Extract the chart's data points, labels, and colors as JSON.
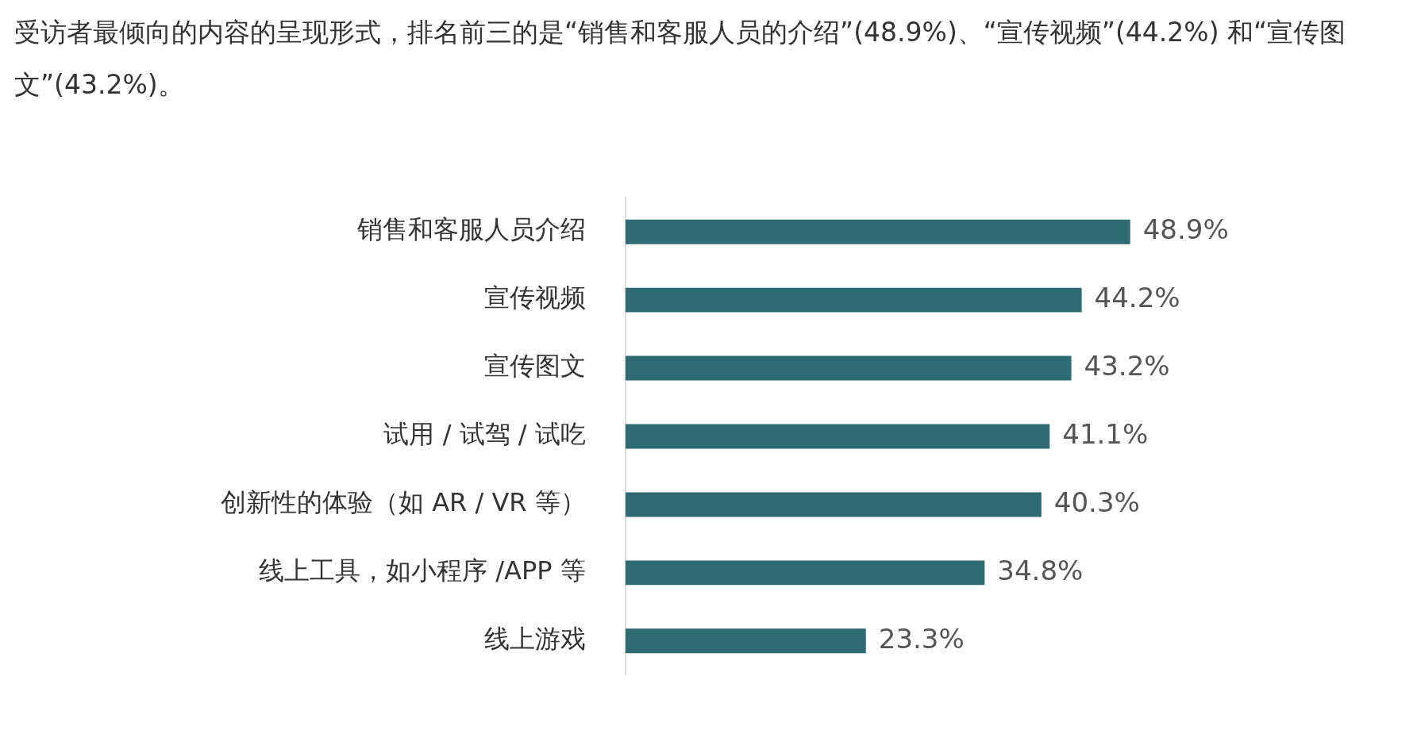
{
  "chart_data": {
    "type": "bar",
    "orientation": "horizontal",
    "title": "受访者最倾向的内容的呈现形式，排名前三的是“销售和客服人员的介绍”(48.9%)、“宣传视频”(44.2%) 和“宣传图文”(43.2%)。",
    "categories": [
      "销售和客服人员介绍",
      "宣传视频",
      "宣传图文",
      "试用 / 试驾 / 试吃",
      "创新性的体验（如 AR / VR 等）",
      "线上工具，如小程序 /APP 等",
      "线上游戏"
    ],
    "values": [
      48.9,
      44.2,
      43.2,
      41.1,
      40.3,
      34.8,
      23.3
    ],
    "color": "#2e6b73",
    "value_labels": [
      "48.9%",
      "44.2%",
      "43.2%",
      "41.1%",
      "40.3%",
      "34.8%",
      "23.3%"
    ],
    "tick_labels": "y",
    "grid": false,
    "legend": false
  }
}
